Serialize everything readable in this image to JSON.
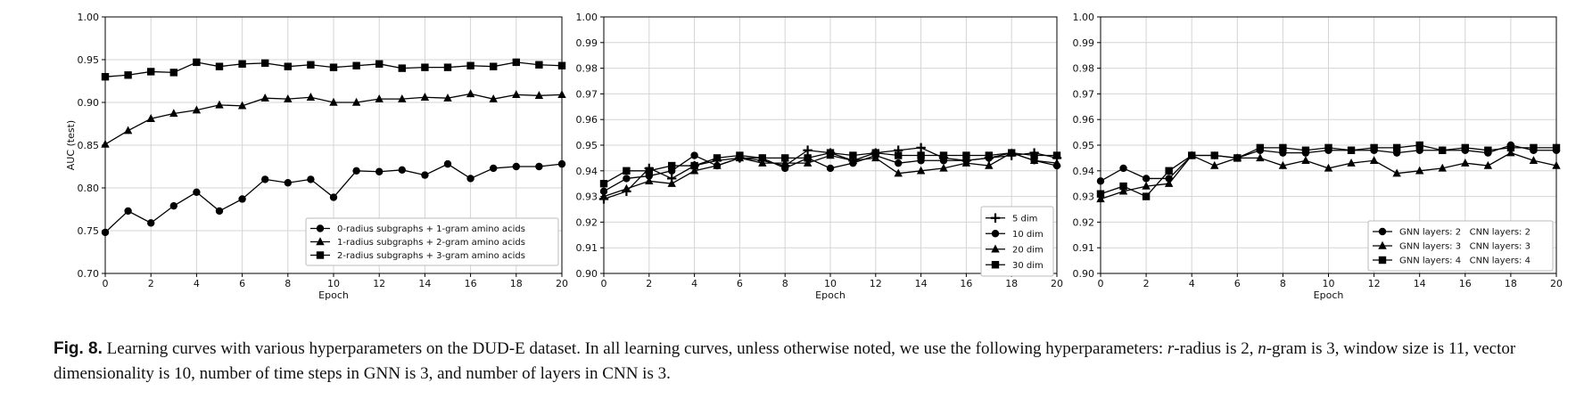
{
  "chart_data": [
    {
      "type": "line",
      "xlabel": "Epoch",
      "ylabel": "AUC (test)",
      "xlim": [
        0,
        20
      ],
      "ylim": [
        0.7,
        1.0
      ],
      "xticks": [
        "0",
        "2",
        "4",
        "6",
        "8",
        "10",
        "12",
        "14",
        "16",
        "18",
        "20"
      ],
      "yticks": [
        "0.70",
        "0.75",
        "0.80",
        "0.85",
        "0.90",
        "0.95",
        "1.00"
      ],
      "grid": true,
      "legend_position": "bottom-right",
      "x": [
        0,
        1,
        2,
        3,
        4,
        5,
        6,
        7,
        8,
        9,
        10,
        11,
        12,
        13,
        14,
        15,
        16,
        17,
        18,
        19,
        20
      ],
      "series": [
        {
          "name": "0-radius subgraphs + 1-gram amino acids",
          "marker": "circle",
          "values": [
            0.748,
            0.773,
            0.759,
            0.779,
            0.795,
            0.773,
            0.787,
            0.81,
            0.806,
            0.81,
            0.789,
            0.82,
            0.819,
            0.821,
            0.815,
            0.828,
            0.811,
            0.823,
            0.825,
            0.825,
            0.828
          ]
        },
        {
          "name": "1-radius subgraphs + 2-gram amino acids",
          "marker": "triangle",
          "values": [
            0.851,
            0.867,
            0.881,
            0.887,
            0.891,
            0.897,
            0.896,
            0.905,
            0.904,
            0.906,
            0.9,
            0.9,
            0.904,
            0.904,
            0.906,
            0.905,
            0.91,
            0.904,
            0.909,
            0.908,
            0.909
          ]
        },
        {
          "name": "2-radius subgraphs + 3-gram amino acids",
          "marker": "square",
          "values": [
            0.93,
            0.932,
            0.936,
            0.935,
            0.947,
            0.942,
            0.945,
            0.946,
            0.942,
            0.944,
            0.941,
            0.943,
            0.945,
            0.94,
            0.941,
            0.941,
            0.943,
            0.942,
            0.947,
            0.944,
            0.943
          ]
        }
      ]
    },
    {
      "type": "line",
      "xlabel": "Epoch",
      "ylabel": "",
      "xlim": [
        0,
        20
      ],
      "ylim": [
        0.9,
        1.0
      ],
      "xticks": [
        "0",
        "2",
        "4",
        "6",
        "8",
        "10",
        "12",
        "14",
        "16",
        "18",
        "20"
      ],
      "yticks": [
        "0.90",
        "0.91",
        "0.92",
        "0.93",
        "0.94",
        "0.95",
        "0.96",
        "0.97",
        "0.98",
        "0.99",
        "1.00"
      ],
      "grid": true,
      "legend_position": "bottom-right",
      "x": [
        0,
        1,
        2,
        3,
        4,
        5,
        6,
        7,
        8,
        9,
        10,
        11,
        12,
        13,
        14,
        15,
        16,
        17,
        18,
        19,
        20
      ],
      "series": [
        {
          "name": "5 dim",
          "marker": "plus",
          "values": [
            0.929,
            0.932,
            0.941,
            0.937,
            0.942,
            0.944,
            0.945,
            0.944,
            0.942,
            0.948,
            0.947,
            0.944,
            0.947,
            0.948,
            0.949,
            0.945,
            0.944,
            0.945,
            0.946,
            0.947,
            0.945
          ]
        },
        {
          "name": "10 dim",
          "marker": "circle",
          "values": [
            0.932,
            0.937,
            0.938,
            0.94,
            0.946,
            0.942,
            0.945,
            0.945,
            0.941,
            0.945,
            0.941,
            0.943,
            0.946,
            0.943,
            0.944,
            0.944,
            0.944,
            0.945,
            0.947,
            0.944,
            0.942
          ]
        },
        {
          "name": "20 dim",
          "marker": "triangle",
          "values": [
            0.93,
            0.933,
            0.936,
            0.935,
            0.94,
            0.942,
            0.945,
            0.943,
            0.943,
            0.943,
            0.946,
            0.944,
            0.945,
            0.939,
            0.94,
            0.941,
            0.943,
            0.942,
            0.947,
            0.944,
            0.943
          ]
        },
        {
          "name": "30 dim",
          "marker": "square",
          "values": [
            0.935,
            0.94,
            0.94,
            0.942,
            0.942,
            0.945,
            0.946,
            0.945,
            0.945,
            0.945,
            0.947,
            0.946,
            0.947,
            0.946,
            0.946,
            0.946,
            0.946,
            0.946,
            0.947,
            0.946,
            0.946
          ]
        }
      ]
    },
    {
      "type": "line",
      "xlabel": "Epoch",
      "ylabel": "",
      "xlim": [
        0,
        20
      ],
      "ylim": [
        0.9,
        1.0
      ],
      "xticks": [
        "0",
        "2",
        "4",
        "6",
        "8",
        "10",
        "12",
        "14",
        "16",
        "18",
        "20"
      ],
      "yticks": [
        "0.90",
        "0.91",
        "0.92",
        "0.93",
        "0.94",
        "0.95",
        "0.96",
        "0.97",
        "0.98",
        "0.99",
        "1.00"
      ],
      "grid": true,
      "legend_position": "bottom-right",
      "x": [
        0,
        1,
        2,
        3,
        4,
        5,
        6,
        7,
        8,
        9,
        10,
        11,
        12,
        13,
        14,
        15,
        16,
        17,
        18,
        19,
        20
      ],
      "series": [
        {
          "name": "GNN layers: 2   CNN layers: 2",
          "marker": "circle",
          "values": [
            0.936,
            0.941,
            0.937,
            0.937,
            0.946,
            0.946,
            0.945,
            0.948,
            0.947,
            0.947,
            0.948,
            0.948,
            0.948,
            0.947,
            0.948,
            0.948,
            0.948,
            0.947,
            0.95,
            0.948,
            0.948
          ]
        },
        {
          "name": "GNN layers: 3   CNN layers: 3",
          "marker": "triangle",
          "values": [
            0.929,
            0.932,
            0.934,
            0.935,
            0.946,
            0.942,
            0.945,
            0.945,
            0.942,
            0.944,
            0.941,
            0.943,
            0.944,
            0.939,
            0.94,
            0.941,
            0.943,
            0.942,
            0.947,
            0.944,
            0.942
          ]
        },
        {
          "name": "GNN layers: 4   CNN layers: 4",
          "marker": "square",
          "values": [
            0.931,
            0.934,
            0.93,
            0.94,
            0.946,
            0.946,
            0.945,
            0.949,
            0.949,
            0.948,
            0.949,
            0.948,
            0.949,
            0.949,
            0.95,
            0.948,
            0.949,
            0.948,
            0.949,
            0.949,
            0.949
          ]
        }
      ]
    }
  ],
  "caption": {
    "label": "Fig. 8.",
    "part1": " Learning curves with various hyperparameters on the DUD-E dataset. In all learning curves, unless otherwise noted, we use the following hyperparameters: ",
    "var_r": "r",
    "part2": "-radius is 2, ",
    "var_n": "n",
    "part3": "-gram is 3, window size is 11, vector dimensionality is 10, number of time steps in GNN is 3, and number of layers in CNN is 3."
  }
}
